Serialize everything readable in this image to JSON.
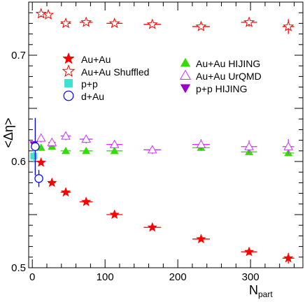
{
  "chart_data": {
    "type": "scatter",
    "xlabel_main": "N",
    "xlabel_sub": "part",
    "ylabel": "<Δη>",
    "xlim": [
      -5,
      372
    ],
    "ylim": [
      0.5,
      0.75
    ],
    "xticks": [
      0,
      100,
      200,
      300
    ],
    "yticks": [
      0.5,
      0.6,
      0.7
    ],
    "grid": false,
    "legend_placement": "upper area, two columns",
    "series": [
      {
        "name": "Au+Au",
        "marker": "star-filled",
        "color": "#ff0000",
        "points": [
          {
            "x": 12,
            "y": 0.599,
            "xerr": 3,
            "yerr": 0.002
          },
          {
            "x": 27,
            "y": 0.58,
            "xerr": 5,
            "yerr": 0.002
          },
          {
            "x": 46,
            "y": 0.571,
            "xerr": 7,
            "yerr": 0.002
          },
          {
            "x": 74,
            "y": 0.562,
            "xerr": 9,
            "yerr": 0.002
          },
          {
            "x": 113,
            "y": 0.55,
            "xerr": 11,
            "yerr": 0.002
          },
          {
            "x": 165,
            "y": 0.538,
            "xerr": 12,
            "yerr": 0.002
          },
          {
            "x": 232,
            "y": 0.527,
            "xerr": 12,
            "yerr": 0.002
          },
          {
            "x": 298,
            "y": 0.515,
            "xerr": 11,
            "yerr": 0.003
          },
          {
            "x": 352,
            "y": 0.509,
            "xerr": 8,
            "yerr": 0.005
          }
        ]
      },
      {
        "name": "Au+Au Shuffled",
        "marker": "star-open",
        "color": "#ff0000",
        "points": [
          {
            "x": 12,
            "y": 0.739,
            "xerr": 3,
            "yerr": 0.003
          },
          {
            "x": 22,
            "y": 0.738,
            "xerr": 4,
            "yerr": 0.002
          },
          {
            "x": 46,
            "y": 0.73,
            "xerr": 7,
            "yerr": 0.002
          },
          {
            "x": 74,
            "y": 0.731,
            "xerr": 9,
            "yerr": 0.002
          },
          {
            "x": 113,
            "y": 0.73,
            "xerr": 11,
            "yerr": 0.002
          },
          {
            "x": 165,
            "y": 0.729,
            "xerr": 12,
            "yerr": 0.002
          },
          {
            "x": 232,
            "y": 0.727,
            "xerr": 12,
            "yerr": 0.002
          },
          {
            "x": 298,
            "y": 0.731,
            "xerr": 11,
            "yerr": 0.004
          },
          {
            "x": 352,
            "y": 0.727,
            "xerr": 8,
            "yerr": 0.007
          }
        ]
      },
      {
        "name": "p+p",
        "marker": "square-filled",
        "color": "#40e0d0",
        "points": [
          {
            "x": 2,
            "y": 0.605,
            "xerr": 2,
            "yerr": 0.006
          }
        ]
      },
      {
        "name": "d+Au",
        "marker": "circle-open",
        "color": "#0000ff",
        "points": [
          {
            "x": 9,
            "y": 0.584,
            "xerr": 2,
            "yerr": 0.008
          },
          {
            "x": 4,
            "y": 0.614,
            "xerr": 3,
            "yerr": 0.027
          }
        ]
      },
      {
        "name": "Au+Au HIJING",
        "marker": "triangle-up-filled",
        "color": "#33dd00",
        "points": [
          {
            "x": 12,
            "y": 0.613,
            "xerr": 3,
            "yerr": 0.002
          },
          {
            "x": 27,
            "y": 0.614,
            "xerr": 5,
            "yerr": 0.002
          },
          {
            "x": 46,
            "y": 0.61,
            "xerr": 7,
            "yerr": 0.002
          },
          {
            "x": 74,
            "y": 0.61,
            "xerr": 9,
            "yerr": 0.002
          },
          {
            "x": 113,
            "y": 0.61,
            "xerr": 11,
            "yerr": 0.002
          },
          {
            "x": 165,
            "y": 0.611,
            "xerr": 12,
            "yerr": 0.002
          },
          {
            "x": 232,
            "y": 0.613,
            "xerr": 12,
            "yerr": 0.003
          },
          {
            "x": 298,
            "y": 0.609,
            "xerr": 11,
            "yerr": 0.002
          },
          {
            "x": 352,
            "y": 0.608,
            "xerr": 8,
            "yerr": 0.002
          }
        ]
      },
      {
        "name": "Au+Au UrQMD",
        "marker": "triangle-up-open",
        "color": "#cc33ff",
        "points": [
          {
            "x": 12,
            "y": 0.622,
            "xerr": 3,
            "yerr": 0.004
          },
          {
            "x": 27,
            "y": 0.618,
            "xerr": 5,
            "yerr": 0.004
          },
          {
            "x": 46,
            "y": 0.624,
            "xerr": 7,
            "yerr": 0.004
          },
          {
            "x": 74,
            "y": 0.621,
            "xerr": 9,
            "yerr": 0.004
          },
          {
            "x": 113,
            "y": 0.616,
            "xerr": 11,
            "yerr": 0.004
          },
          {
            "x": 165,
            "y": 0.611,
            "xerr": 12,
            "yerr": 0.004
          },
          {
            "x": 232,
            "y": 0.616,
            "xerr": 12,
            "yerr": 0.005
          },
          {
            "x": 298,
            "y": 0.614,
            "xerr": 11,
            "yerr": 0.006
          },
          {
            "x": 352,
            "y": 0.614,
            "xerr": 8,
            "yerr": 0.007
          }
        ]
      },
      {
        "name": "p+p HIJING",
        "marker": "triangle-down-filled",
        "color": "#9900cc",
        "points": [
          {
            "x": 2,
            "y": 0.616,
            "xerr": 1,
            "yerr": 0.003
          }
        ]
      }
    ]
  }
}
